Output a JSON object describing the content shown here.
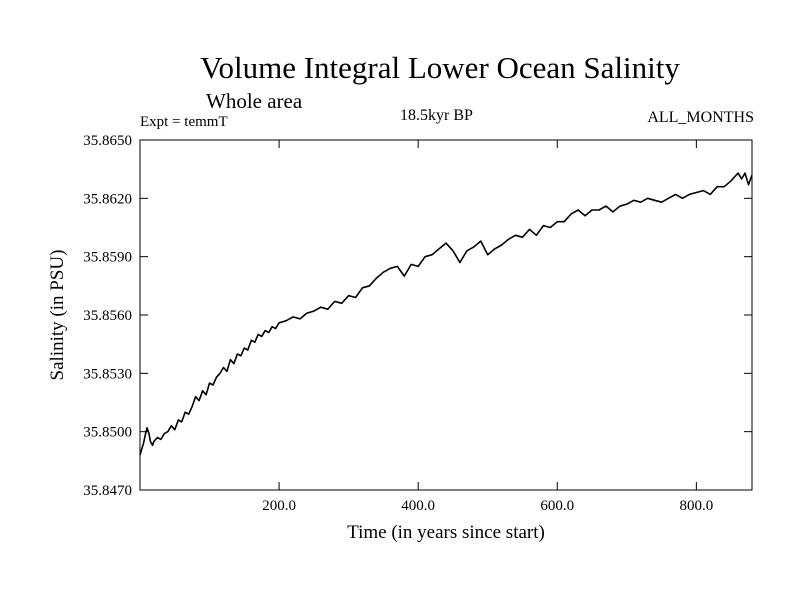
{
  "header": {
    "title": "Volume Integral Lower Ocean Salinity",
    "subtitle": "Whole area",
    "experiment": "Expt = temmT",
    "period": "18.5kyr BP",
    "months": "ALL_MONTHS"
  },
  "chart_data": {
    "type": "line",
    "title": "Volume Integral Lower Ocean Salinity",
    "subtitle": "Whole area",
    "xlabel": "Time (in years since start)",
    "ylabel": "Salinity (in PSU)",
    "xlim": [
      0,
      880
    ],
    "ylim": [
      35.847,
      35.865
    ],
    "x_ticks": [
      {
        "value": 200,
        "label": "200.0"
      },
      {
        "value": 400,
        "label": "400.0"
      },
      {
        "value": 600,
        "label": "600.0"
      },
      {
        "value": 800,
        "label": "800.0"
      }
    ],
    "y_ticks": [
      {
        "value": 35.847,
        "label": "35.8470"
      },
      {
        "value": 35.85,
        "label": "35.8500"
      },
      {
        "value": 35.853,
        "label": "35.8530"
      },
      {
        "value": 35.856,
        "label": "35.8560"
      },
      {
        "value": 35.859,
        "label": "35.8590"
      },
      {
        "value": 35.862,
        "label": "35.8620"
      },
      {
        "value": 35.865,
        "label": "35.8650"
      }
    ],
    "grid": false,
    "series": [
      {
        "name": "Salinity",
        "color": "#000000",
        "x": [
          0,
          5,
          8,
          10,
          13,
          15,
          18,
          20,
          25,
          30,
          35,
          40,
          45,
          50,
          55,
          60,
          65,
          70,
          75,
          80,
          85,
          90,
          95,
          100,
          105,
          110,
          115,
          120,
          125,
          130,
          135,
          140,
          145,
          150,
          155,
          160,
          165,
          170,
          175,
          180,
          185,
          190,
          195,
          200,
          210,
          220,
          230,
          240,
          250,
          260,
          270,
          280,
          290,
          300,
          310,
          320,
          330,
          340,
          350,
          360,
          370,
          380,
          390,
          400,
          410,
          420,
          430,
          440,
          450,
          460,
          470,
          480,
          490,
          500,
          510,
          520,
          530,
          540,
          550,
          560,
          570,
          580,
          590,
          600,
          610,
          620,
          630,
          640,
          650,
          660,
          670,
          680,
          690,
          700,
          710,
          720,
          730,
          740,
          750,
          760,
          770,
          780,
          790,
          800,
          810,
          820,
          830,
          840,
          850,
          855,
          860,
          865,
          870,
          875,
          880
        ],
        "values": [
          35.8488,
          35.8494,
          35.8499,
          35.8502,
          35.8499,
          35.8495,
          35.8493,
          35.8495,
          35.8497,
          35.8496,
          35.8499,
          35.85,
          35.8503,
          35.8501,
          35.8506,
          35.8505,
          35.851,
          35.8509,
          35.8513,
          35.8518,
          35.8516,
          35.8521,
          35.8519,
          35.8525,
          35.8524,
          35.8528,
          35.853,
          35.8533,
          35.8531,
          35.8537,
          35.8535,
          35.854,
          35.8539,
          35.8543,
          35.8542,
          35.8547,
          35.8546,
          35.855,
          35.8549,
          35.8552,
          35.8551,
          35.8554,
          35.8553,
          35.8556,
          35.8557,
          35.8559,
          35.8558,
          35.8561,
          35.8562,
          35.8564,
          35.8563,
          35.8567,
          35.8566,
          35.857,
          35.8569,
          35.8574,
          35.8575,
          35.8579,
          35.8582,
          35.8584,
          35.8585,
          35.858,
          35.8586,
          35.8585,
          35.859,
          35.8591,
          35.8594,
          35.8597,
          35.8593,
          35.8587,
          35.8593,
          35.8595,
          35.8598,
          35.8591,
          35.8594,
          35.8596,
          35.8599,
          35.8601,
          35.86,
          35.8604,
          35.8601,
          35.8606,
          35.8605,
          35.8608,
          35.8608,
          35.8612,
          35.8614,
          35.8611,
          35.8614,
          35.8614,
          35.8616,
          35.8613,
          35.8616,
          35.8617,
          35.8619,
          35.8618,
          35.862,
          35.8619,
          35.8618,
          35.862,
          35.8622,
          35.862,
          35.8622,
          35.8623,
          35.8624,
          35.8622,
          35.8626,
          35.8626,
          35.8629,
          35.8631,
          35.8633,
          35.863,
          35.8633,
          35.8627,
          35.8632
        ]
      }
    ]
  }
}
